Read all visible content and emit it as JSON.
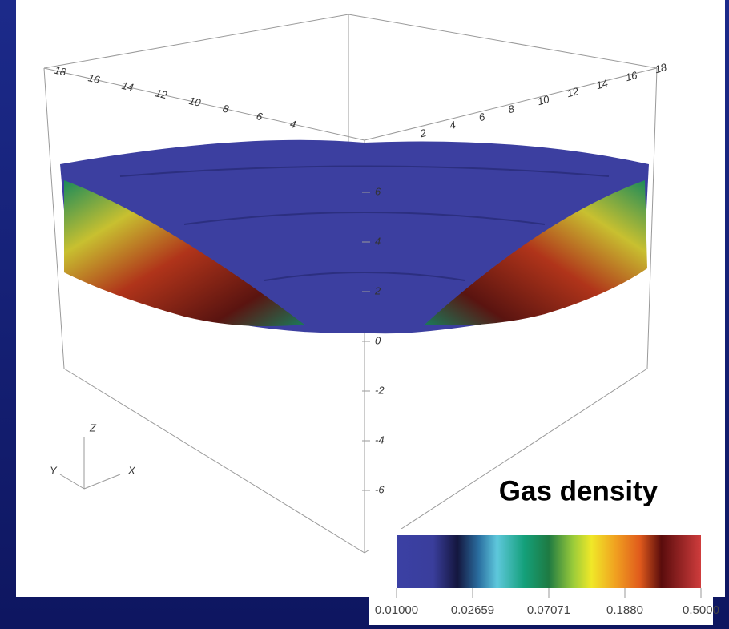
{
  "title": "Gas density",
  "colorbar": {
    "tick_labels": [
      "0.01000",
      "0.02659",
      "0.07071",
      "0.1880",
      "0.5000"
    ]
  },
  "axes": {
    "triad": {
      "z": "Z",
      "y": "Y",
      "x": "X"
    },
    "vertical_ticks": [
      "6",
      "4",
      "2",
      "0",
      "-2",
      "-4",
      "-6"
    ],
    "back_left_ticks": [
      "18",
      "16",
      "14",
      "12",
      "10",
      "8",
      "6",
      "4"
    ],
    "back_right_ticks": [
      "2",
      "4",
      "6",
      "8",
      "10",
      "12",
      "14",
      "16",
      "18"
    ]
  }
}
